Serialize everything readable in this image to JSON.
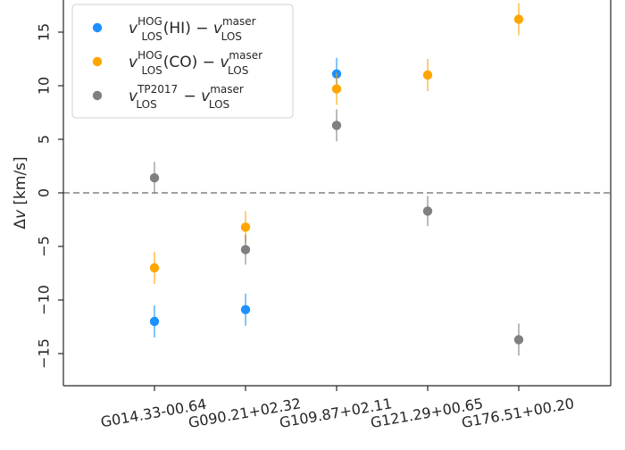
{
  "chart_data": {
    "type": "scatter",
    "title": "",
    "xlabel": "",
    "ylabel": "Δv [km/s]",
    "ylabel_math": "Δ",
    "ylabel_var": "v",
    "ylabel_unit": " [km/s]",
    "ylim": [
      -18,
      18
    ],
    "yticks": [
      -15,
      -10,
      -5,
      0,
      5,
      10,
      15
    ],
    "categories": [
      "G014.33-00.64",
      "G090.21+02.32",
      "G109.87+02.11",
      "G121.29+00.65",
      "G176.51+00.20"
    ],
    "zero_line": true,
    "grid": false,
    "legend_position": "top-left",
    "series": [
      {
        "name": "v_LOS^HOG(HI) − v_LOS^maser",
        "legend": {
          "v": "v",
          "sup1": "HOG",
          "sub1": "LOS",
          "tag": "(HI)",
          "minus": " − ",
          "v2": "v",
          "sup2": "maser",
          "sub2": "LOS"
        },
        "color": "#1e90ff",
        "points": [
          {
            "x": "G014.33-00.64",
            "y": -12.0,
            "err": 1.5
          },
          {
            "x": "G090.21+02.32",
            "y": -10.9,
            "err": 1.5
          },
          {
            "x": "G109.87+02.11",
            "y": 11.1,
            "err": 1.5
          }
        ]
      },
      {
        "name": "v_LOS^HOG(CO) − v_LOS^maser",
        "legend": {
          "v": "v",
          "sup1": "HOG",
          "sub1": "LOS",
          "tag": "(CO)",
          "minus": " − ",
          "v2": "v",
          "sup2": "maser",
          "sub2": "LOS"
        },
        "color": "#ffa500",
        "points": [
          {
            "x": "G014.33-00.64",
            "y": -7.0,
            "err": 1.5
          },
          {
            "x": "G090.21+02.32",
            "y": -3.2,
            "err": 1.5
          },
          {
            "x": "G109.87+02.11",
            "y": 9.7,
            "err": 1.5
          },
          {
            "x": "G121.29+00.65",
            "y": 11.0,
            "err": 1.5
          },
          {
            "x": "G176.51+00.20",
            "y": 16.2,
            "err": 1.5
          }
        ]
      },
      {
        "name": "v_LOS^TP2017 − v_LOS^maser",
        "legend": {
          "v": "v",
          "sup1": "TP2017",
          "sub1": "LOS",
          "tag": "",
          "minus": " − ",
          "v2": "v",
          "sup2": "maser",
          "sub2": "LOS"
        },
        "color": "#808080",
        "points": [
          {
            "x": "G014.33-00.64",
            "y": 1.4,
            "err": 1.5
          },
          {
            "x": "G090.21+02.32",
            "y": -5.3,
            "err": 1.4
          },
          {
            "x": "G109.87+02.11",
            "y": 6.3,
            "err": 1.5
          },
          {
            "x": "G121.29+00.65",
            "y": -1.7,
            "err": 1.4
          },
          {
            "x": "G176.51+00.20",
            "y": -13.7,
            "err": 1.5
          }
        ]
      }
    ]
  }
}
